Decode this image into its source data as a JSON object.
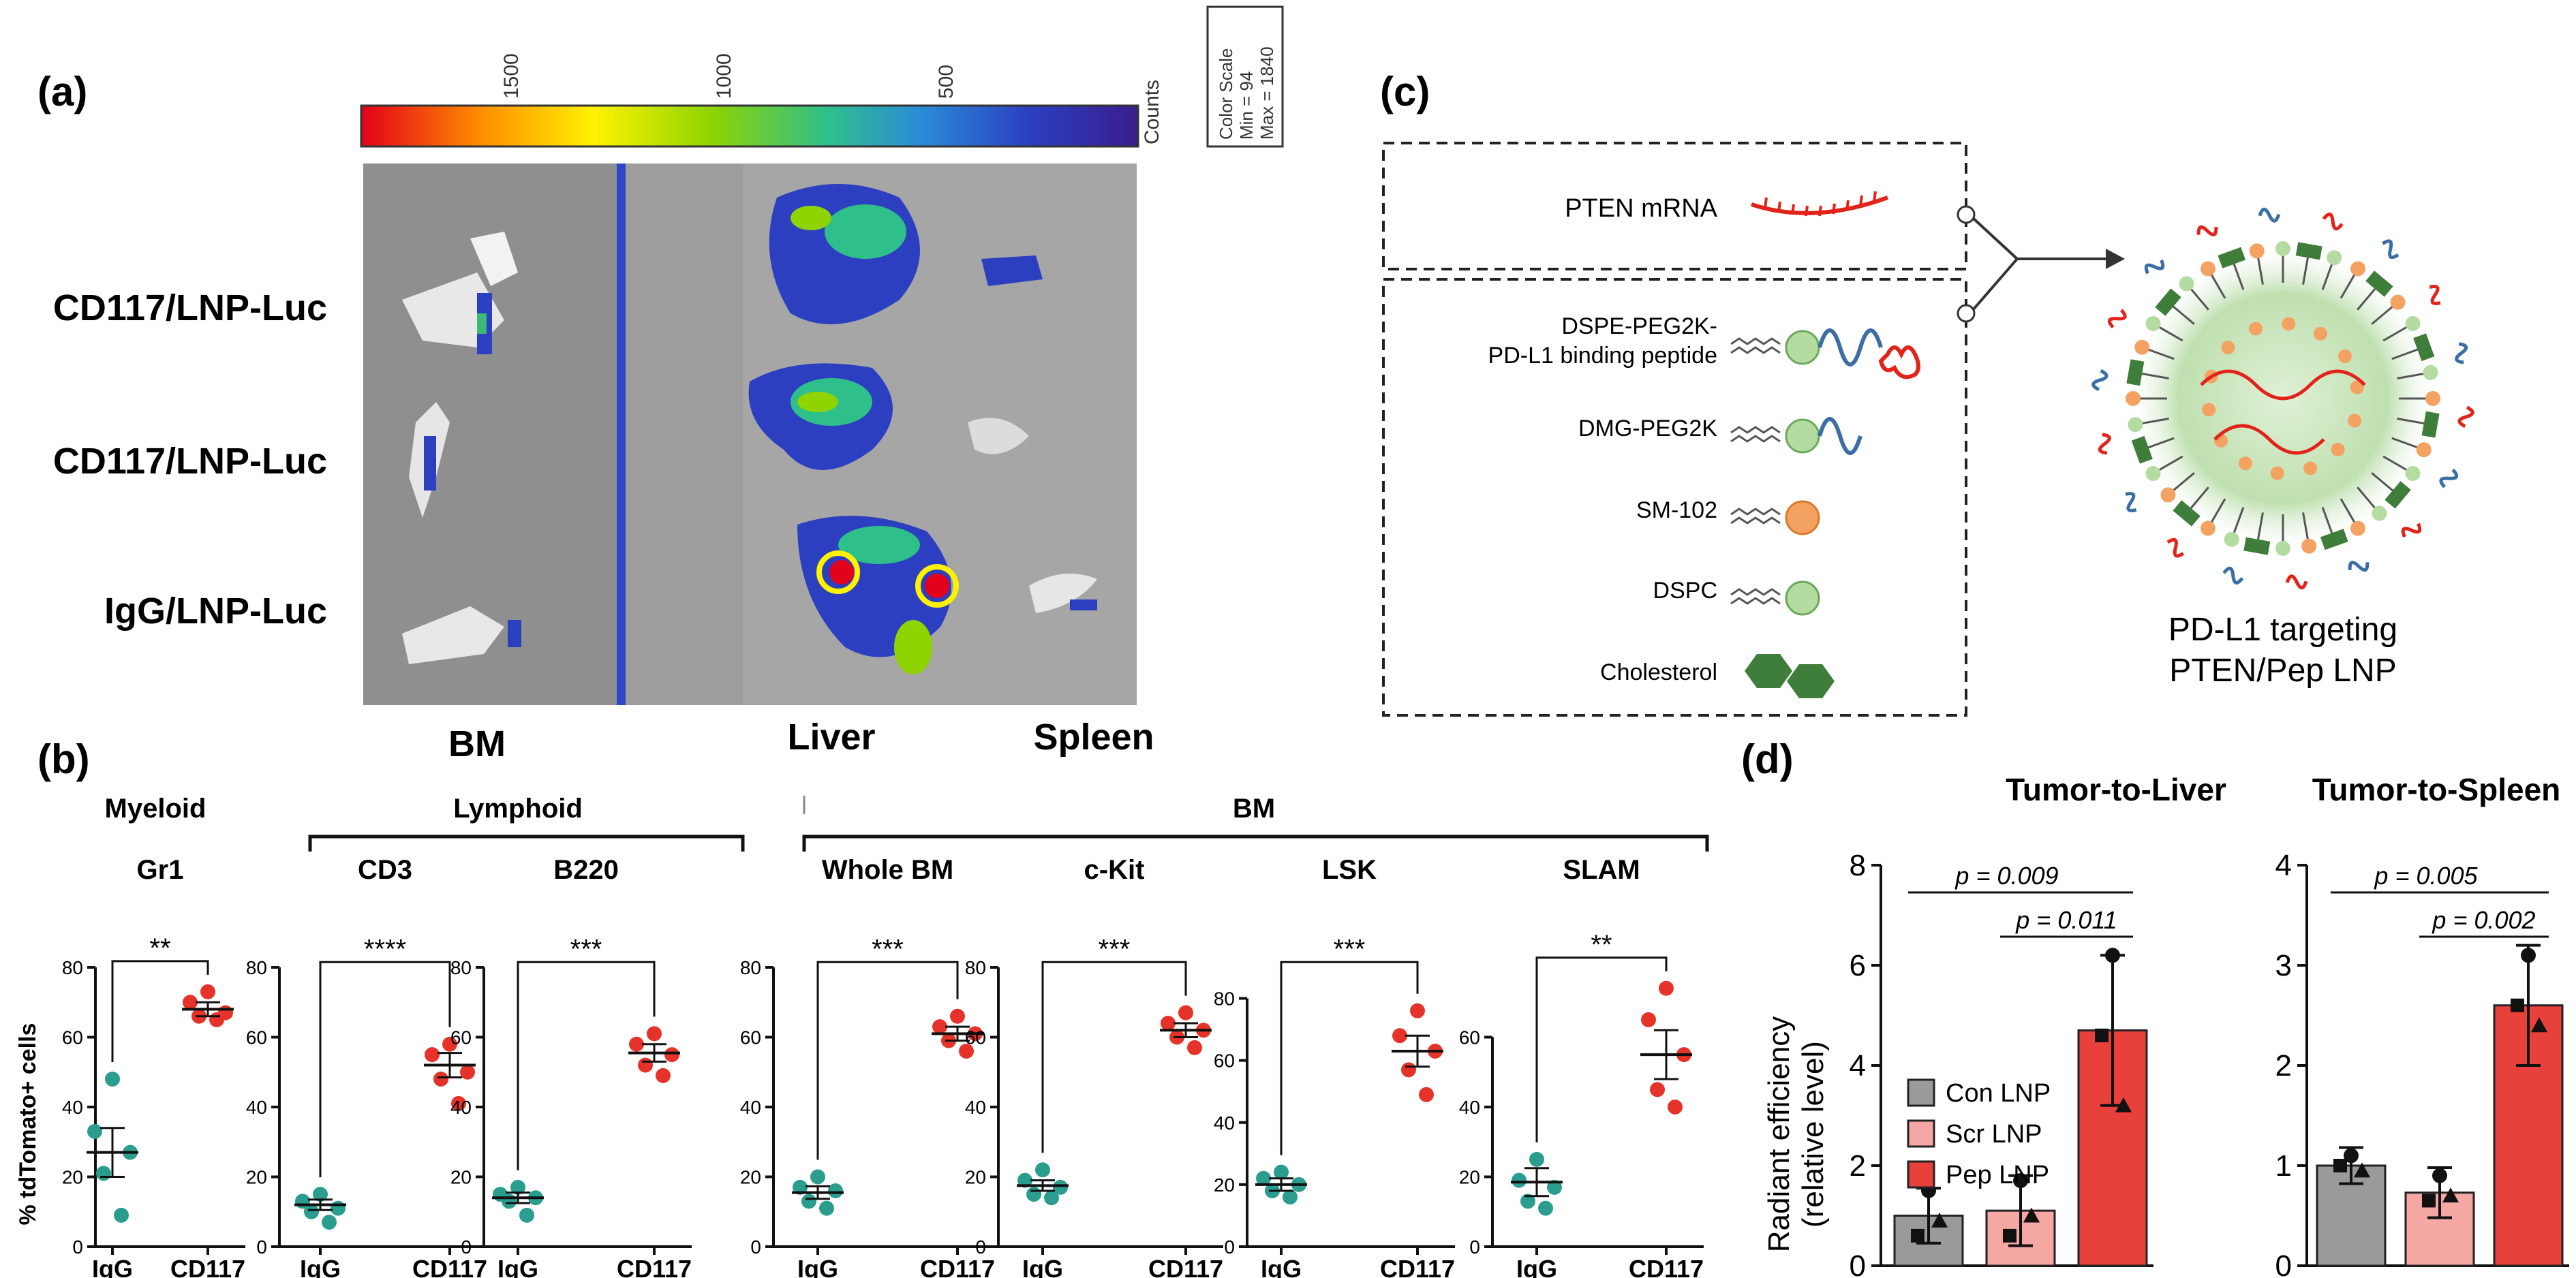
{
  "panels": {
    "a": "(a)",
    "b": "(b)",
    "c": "(c)",
    "d": "(d)"
  },
  "panel_a": {
    "colorbar_ticks": [
      "1500",
      "1000",
      "500"
    ],
    "colorbar_unit": "Counts",
    "colorbar_colors": [
      "#e3001b",
      "#ff8a00",
      "#fff200",
      "#8fd400",
      "#2fbf8a",
      "#2a8cd8",
      "#2b3fc0",
      "#3a1d8f"
    ],
    "color_scale_box": {
      "line1": "Color Scale",
      "line2": "Min = 94",
      "line3": "Max = 1840"
    },
    "row_labels": [
      "CD117/LNP-Luc",
      "CD117/LNP-Luc",
      "IgG/LNP-Luc"
    ],
    "column_labels": [
      "BM",
      "Liver",
      "Spleen"
    ]
  },
  "panel_b": {
    "y_axis_label": "% tdTomato+ cells",
    "group_labels": {
      "myeloid": "Myeloid",
      "lymphoid": "Lymphoid",
      "bm": "BM"
    },
    "colors": {
      "igg": "#2a9d8f",
      "cd117": "#e63329"
    }
  },
  "panel_c": {
    "top_item": "PTEN mRNA",
    "items": [
      "DSPE-PEG2K-",
      "PD-L1 binding peptide",
      "DMG-PEG2K",
      "SM-102",
      "DSPC",
      "Cholesterol"
    ],
    "caption_line1": "PD-L1 targeting",
    "caption_line2": "PTEN/Pep LNP",
    "colors": {
      "mrna": "#e2231a",
      "peg": "#3a6ea5",
      "sm102": "#f4a261",
      "dspc": "#b5dca0",
      "chol": "#3f7d3a",
      "core": "#cfe8c4"
    }
  },
  "panel_d": {
    "y_axis_label_line1": "Radiant efficiency",
    "y_axis_label_line2": "(relative level)",
    "legend": [
      "Con LNP",
      "Scr LNP",
      "Pep LNP"
    ],
    "colors": [
      "#9a9a9a",
      "#f4a7a3",
      "#e8403a"
    ]
  },
  "chart_data": [
    {
      "type": "scatter",
      "title": "Gr1",
      "group": "Myeloid",
      "categories": [
        "IgG",
        "CD117"
      ],
      "ylim": [
        0,
        80
      ],
      "yticks": [
        0,
        20,
        40,
        60,
        80
      ],
      "series": [
        {
          "name": "IgG",
          "values": [
            48,
            33,
            27,
            21,
            9
          ],
          "mean": 27,
          "sem": 7
        },
        {
          "name": "CD117",
          "values": [
            73,
            70,
            67,
            66,
            65
          ],
          "mean": 68,
          "sem": 2
        }
      ],
      "significance": "**"
    },
    {
      "type": "scatter",
      "title": "CD3",
      "group": "Lymphoid",
      "categories": [
        "IgG",
        "CD117"
      ],
      "ylim": [
        0,
        80
      ],
      "yticks": [
        0,
        20,
        40,
        60,
        80
      ],
      "series": [
        {
          "name": "IgG",
          "values": [
            15,
            13,
            11,
            10,
            7
          ],
          "mean": 12,
          "sem": 1.5
        },
        {
          "name": "CD117",
          "values": [
            58,
            55,
            50,
            48,
            41
          ],
          "mean": 52,
          "sem": 3.5
        }
      ],
      "significance": "****"
    },
    {
      "type": "scatter",
      "title": "B220",
      "group": "Lymphoid",
      "categories": [
        "IgG",
        "CD117"
      ],
      "ylim": [
        0,
        80
      ],
      "yticks": [
        0,
        20,
        40,
        60,
        80
      ],
      "series": [
        {
          "name": "IgG",
          "values": [
            17,
            15,
            14,
            13,
            9
          ],
          "mean": 14,
          "sem": 1.5
        },
        {
          "name": "CD117",
          "values": [
            61,
            58,
            55,
            52,
            49
          ],
          "mean": 55.5,
          "sem": 2.5
        }
      ],
      "significance": "***"
    },
    {
      "type": "scatter",
      "title": "Whole BM",
      "group": "BM",
      "categories": [
        "IgG",
        "CD117"
      ],
      "ylim": [
        0,
        80
      ],
      "yticks": [
        0,
        20,
        40,
        60,
        80
      ],
      "series": [
        {
          "name": "IgG",
          "values": [
            20,
            17,
            16,
            13,
            11
          ],
          "mean": 15.5,
          "sem": 1.8
        },
        {
          "name": "CD117",
          "values": [
            66,
            63,
            61,
            59,
            56
          ],
          "mean": 61,
          "sem": 2
        }
      ],
      "significance": "***"
    },
    {
      "type": "scatter",
      "title": "c-Kit",
      "group": "BM",
      "categories": [
        "IgG",
        "CD117"
      ],
      "ylim": [
        0,
        80
      ],
      "yticks": [
        0,
        20,
        40,
        60,
        80
      ],
      "series": [
        {
          "name": "IgG",
          "values": [
            22,
            19,
            17,
            15,
            14
          ],
          "mean": 17.5,
          "sem": 1.5
        },
        {
          "name": "CD117",
          "values": [
            67,
            64,
            62,
            60,
            57
          ],
          "mean": 62,
          "sem": 2
        }
      ],
      "significance": "***"
    },
    {
      "type": "scatter",
      "title": "LSK",
      "group": "BM",
      "categories": [
        "IgG",
        "CD117"
      ],
      "ylim": [
        0,
        90
      ],
      "yticks": [
        0,
        20,
        40,
        60,
        80
      ],
      "series": [
        {
          "name": "IgG",
          "values": [
            24,
            22,
            20,
            18,
            16
          ],
          "mean": 20,
          "sem": 2
        },
        {
          "name": "CD117",
          "values": [
            76,
            68,
            63,
            57,
            49
          ],
          "mean": 63,
          "sem": 5
        }
      ],
      "significance": "***"
    },
    {
      "type": "scatter",
      "title": "SLAM",
      "group": "BM",
      "categories": [
        "IgG",
        "CD117"
      ],
      "ylim": [
        0,
        80
      ],
      "yticks": [
        0,
        20,
        40,
        60
      ],
      "series": [
        {
          "name": "IgG",
          "values": [
            25,
            19,
            17,
            13,
            11
          ],
          "mean": 18.5,
          "sem": 4
        },
        {
          "name": "CD117",
          "values": [
            74,
            65,
            55,
            45,
            40
          ],
          "mean": 55,
          "sem": 7
        }
      ],
      "significance": "**"
    },
    {
      "type": "bar",
      "title": "Tumor-to-Liver",
      "categories": [
        "Con LNP",
        "Scr LNP",
        "Pep LNP"
      ],
      "values": [
        1.0,
        1.1,
        4.7
      ],
      "errors": [
        0.55,
        0.7,
        1.5
      ],
      "points": [
        [
          1.5,
          0.6,
          0.9
        ],
        [
          1.7,
          0.6,
          1.0
        ],
        [
          6.2,
          4.6,
          3.2
        ]
      ],
      "ylim": [
        0,
        8
      ],
      "yticks": [
        0,
        2,
        4,
        6,
        8
      ],
      "comparisons": [
        {
          "label": "p = 0.009",
          "from": 0,
          "to": 2
        },
        {
          "label": "p = 0.011",
          "from": 1,
          "to": 2
        }
      ]
    },
    {
      "type": "bar",
      "title": "Tumor-to-Spleen",
      "categories": [
        "Con LNP",
        "Scr LNP",
        "Pep LNP"
      ],
      "values": [
        1.0,
        0.73,
        2.6
      ],
      "errors": [
        0.18,
        0.25,
        0.6
      ],
      "points": [
        [
          1.1,
          1.0,
          0.95
        ],
        [
          0.9,
          0.65,
          0.7
        ],
        [
          3.1,
          2.6,
          2.4
        ]
      ],
      "ylim": [
        0,
        4
      ],
      "yticks": [
        0,
        1,
        2,
        3,
        4
      ],
      "comparisons": [
        {
          "label": "p = 0.005",
          "from": 0,
          "to": 2
        },
        {
          "label": "p = 0.002",
          "from": 1,
          "to": 2
        }
      ]
    }
  ]
}
